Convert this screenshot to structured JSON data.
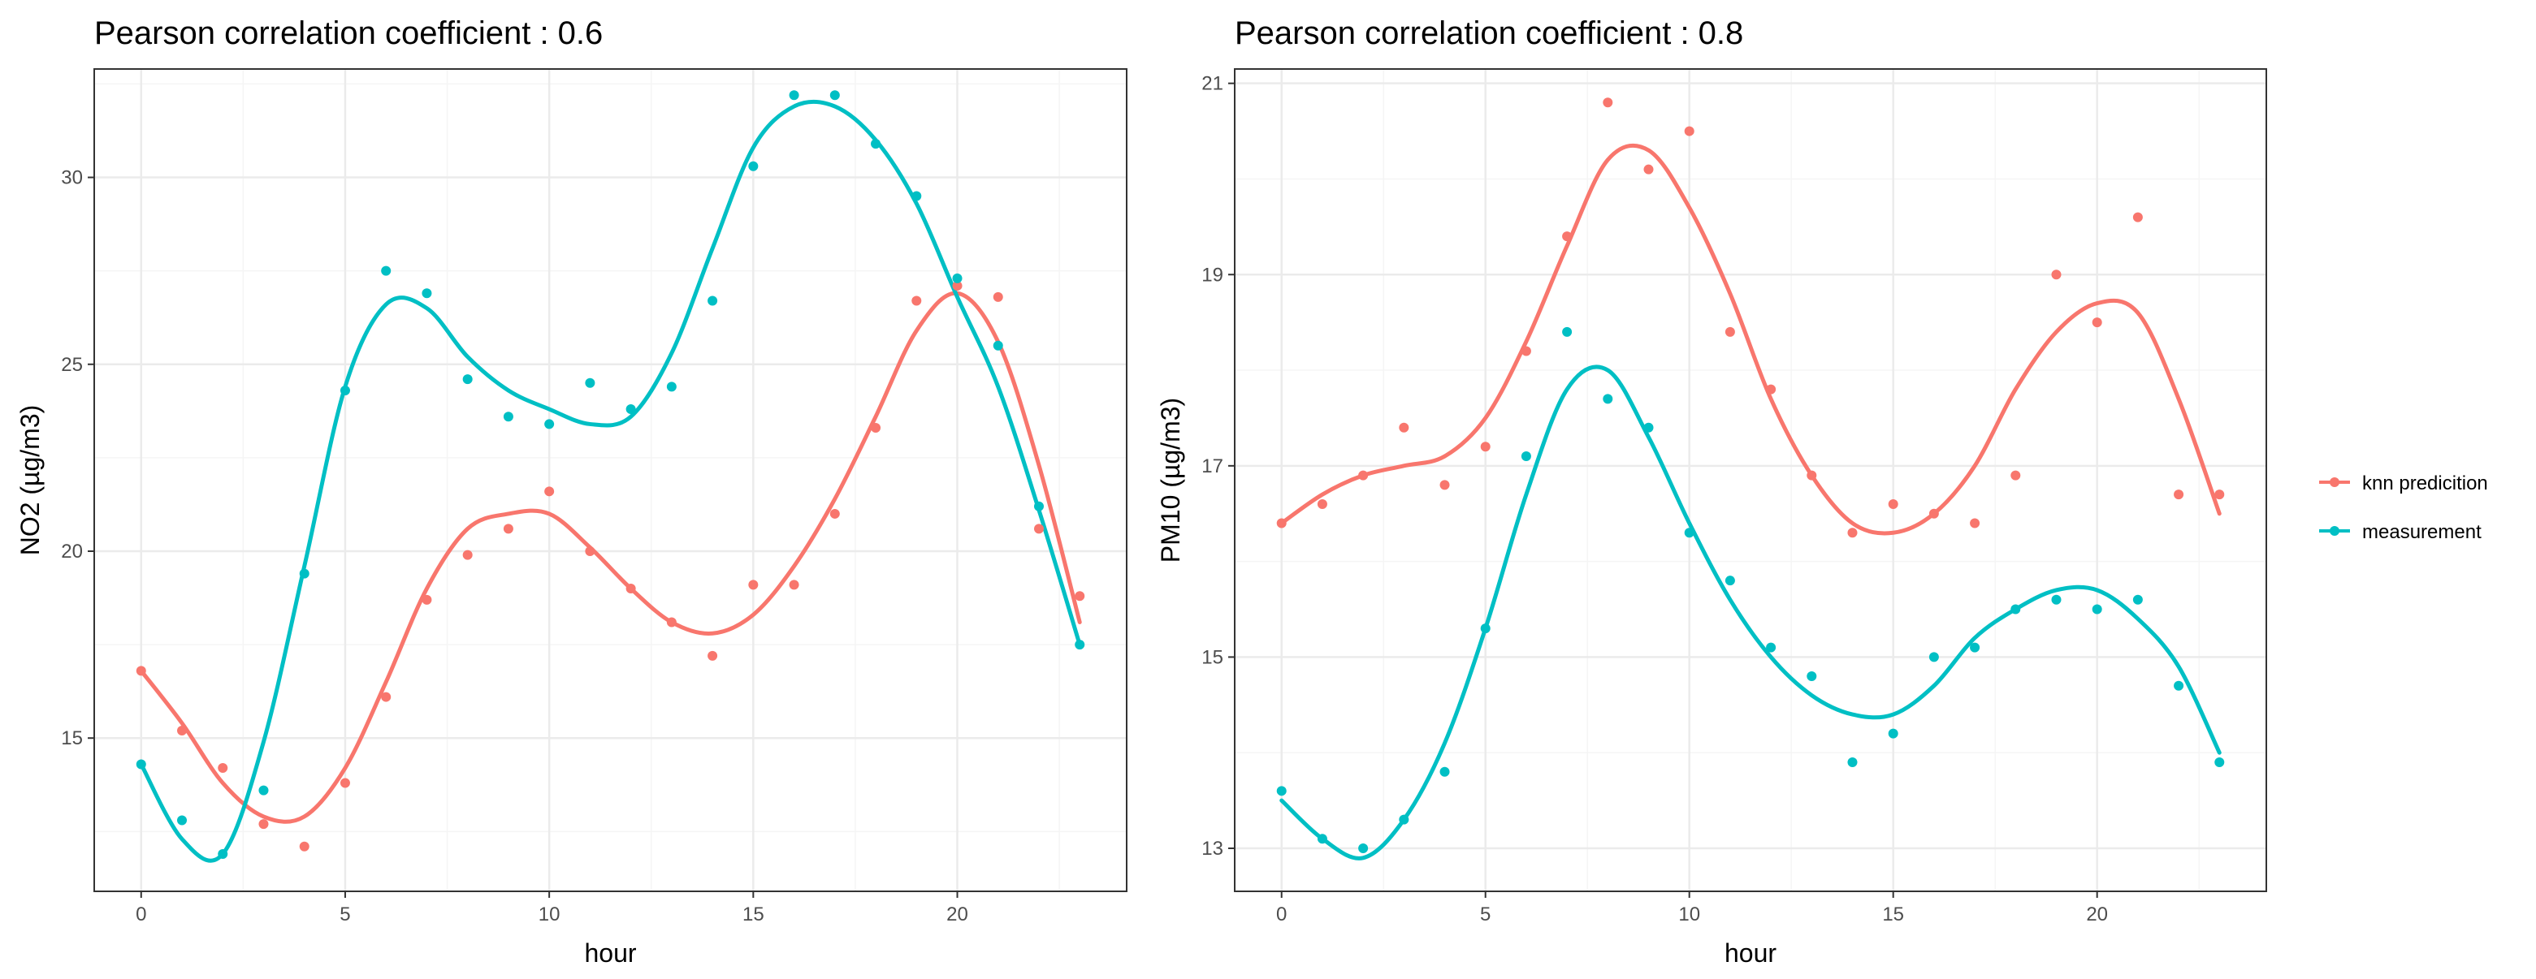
{
  "chart_data": [
    {
      "type": "scatter",
      "title": "Pearson correlation coefficient : 0.6",
      "xlabel": "hour",
      "ylabel": "NO2 (µg/m3)",
      "xlim": [
        -1.15,
        24.15
      ],
      "ylim": [
        10.9,
        32.9
      ],
      "xticks": [
        0,
        5,
        10,
        15,
        20
      ],
      "yticks": [
        15,
        20,
        25,
        30
      ],
      "x": [
        0,
        1,
        2,
        3,
        4,
        5,
        6,
        7,
        8,
        9,
        10,
        11,
        12,
        13,
        14,
        15,
        16,
        17,
        18,
        19,
        20,
        21,
        22,
        23
      ],
      "series": [
        {
          "name": "knn predicition",
          "values": [
            16.8,
            15.2,
            14.2,
            12.7,
            12.1,
            13.8,
            16.1,
            18.7,
            19.9,
            20.6,
            21.6,
            20.0,
            19.0,
            18.1,
            17.2,
            19.1,
            19.1,
            21.0,
            23.3,
            26.7,
            27.1,
            26.8,
            20.6,
            18.8
          ]
        },
        {
          "name": "measurement",
          "values": [
            14.3,
            12.8,
            11.9,
            13.6,
            19.4,
            24.3,
            27.5,
            26.9,
            24.6,
            23.6,
            23.4,
            24.5,
            23.8,
            24.4,
            26.7,
            30.3,
            32.2,
            32.2,
            30.9,
            29.5,
            27.3,
            25.5,
            21.2,
            17.5
          ]
        }
      ],
      "smooth": [
        {
          "name": "knn predicition",
          "values": [
            16.8,
            15.4,
            13.8,
            12.9,
            12.9,
            14.2,
            16.5,
            19.0,
            20.6,
            21.0,
            21.0,
            20.1,
            19.0,
            18.1,
            17.8,
            18.3,
            19.6,
            21.4,
            23.6,
            25.9,
            26.9,
            25.6,
            22.3,
            18.1
          ]
        },
        {
          "name": "measurement",
          "values": [
            14.3,
            12.3,
            11.9,
            14.9,
            19.6,
            24.4,
            26.6,
            26.5,
            25.2,
            24.3,
            23.8,
            23.4,
            23.6,
            25.3,
            28.1,
            30.8,
            31.9,
            31.9,
            31.0,
            29.3,
            26.8,
            24.4,
            21.1,
            17.5
          ]
        }
      ]
    },
    {
      "type": "scatter",
      "title": "Pearson correlation coefficient : 0.8",
      "xlabel": "hour",
      "ylabel": "PM10 (µg/m3)",
      "xlim": [
        -1.15,
        24.15
      ],
      "ylim": [
        12.55,
        21.15
      ],
      "xticks": [
        0,
        5,
        10,
        15,
        20
      ],
      "yticks": [
        13,
        15,
        17,
        19,
        21
      ],
      "x": [
        0,
        1,
        2,
        3,
        4,
        5,
        6,
        7,
        8,
        9,
        10,
        11,
        12,
        13,
        14,
        15,
        16,
        17,
        18,
        19,
        20,
        21,
        22,
        23
      ],
      "series": [
        {
          "name": "knn predicition",
          "values": [
            16.4,
            16.6,
            16.9,
            17.4,
            16.8,
            17.2,
            18.2,
            19.4,
            20.8,
            20.1,
            20.5,
            18.4,
            17.8,
            16.9,
            16.3,
            16.6,
            16.5,
            16.4,
            16.9,
            19.0,
            18.5,
            19.6,
            16.7,
            16.7
          ]
        },
        {
          "name": "measurement",
          "values": [
            13.6,
            13.1,
            13.0,
            13.3,
            13.8,
            15.3,
            17.1,
            18.4,
            17.7,
            17.4,
            16.3,
            15.8,
            15.1,
            14.8,
            13.9,
            14.2,
            15.0,
            15.1,
            15.5,
            15.6,
            15.5,
            15.6,
            14.7,
            13.9
          ]
        }
      ],
      "smooth": [
        {
          "name": "knn predicition",
          "values": [
            16.4,
            16.7,
            16.9,
            17.0,
            17.1,
            17.5,
            18.3,
            19.3,
            20.2,
            20.3,
            19.7,
            18.8,
            17.7,
            16.9,
            16.4,
            16.3,
            16.5,
            17.0,
            17.8,
            18.4,
            18.7,
            18.6,
            17.7,
            16.5
          ]
        },
        {
          "name": "measurement",
          "values": [
            13.5,
            13.1,
            12.9,
            13.3,
            14.1,
            15.3,
            16.7,
            17.8,
            18.0,
            17.3,
            16.4,
            15.6,
            15.0,
            14.6,
            14.4,
            14.4,
            14.7,
            15.2,
            15.5,
            15.7,
            15.7,
            15.4,
            14.9,
            14.0
          ]
        }
      ]
    }
  ],
  "legend": {
    "items": [
      {
        "label": "knn predicition",
        "color": "#F8766D"
      },
      {
        "label": "measurement",
        "color": "#00BFC4"
      }
    ]
  },
  "colors": {
    "knn predicition": "#F8766D",
    "measurement": "#00BFC4",
    "grid_major": "#ebebeb",
    "grid_minor": "#f5f5f5",
    "panel_border": "#333333"
  }
}
